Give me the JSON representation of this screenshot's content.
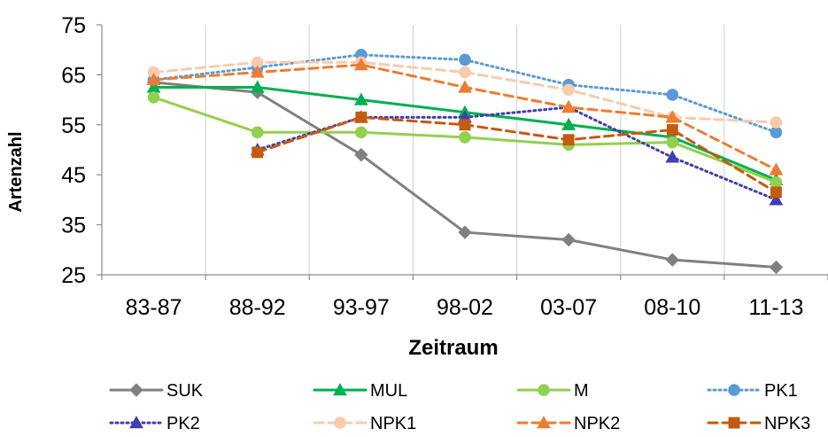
{
  "chart_data": {
    "type": "line",
    "xlabel": "Zeitraum",
    "ylabel": "Artenzahl",
    "categories": [
      "83-87",
      "88-92",
      "93-97",
      "98-02",
      "03-07",
      "08-10",
      "11-13"
    ],
    "ylim": [
      25,
      75
    ],
    "yticks": [
      25,
      35,
      45,
      55,
      65,
      75
    ],
    "grid": {
      "vertical": true,
      "horizontal": false
    },
    "legend_position": "bottom",
    "series": [
      {
        "name": "SUK",
        "color": "#808080",
        "line": "solid",
        "marker": "diamond",
        "values": [
          63.5,
          61.5,
          49,
          33.5,
          32,
          28,
          26.5
        ]
      },
      {
        "name": "MUL",
        "color": "#00B050",
        "line": "solid",
        "marker": "triangle",
        "values": [
          62.5,
          62.5,
          60,
          57.5,
          55,
          52.5,
          44
        ]
      },
      {
        "name": "M",
        "color": "#92D050",
        "line": "solid",
        "marker": "circle",
        "values": [
          60.5,
          53.5,
          53.5,
          52.5,
          51,
          51.5,
          43.5
        ]
      },
      {
        "name": "PK1",
        "color": "#5B9BD5",
        "line": "dotted",
        "marker": "circle",
        "values": [
          64,
          66.5,
          69,
          68,
          63,
          61,
          53.5
        ]
      },
      {
        "name": "PK2",
        "color": "#3F3FAF",
        "line": "dotted",
        "marker": "triangle",
        "values": [
          null,
          50,
          56.5,
          56.5,
          58.5,
          48.5,
          40
        ]
      },
      {
        "name": "NPK1",
        "color": "#F8CBAD",
        "line": "dashed",
        "marker": "circle",
        "values": [
          65.5,
          67.5,
          67.5,
          65.5,
          62,
          56.5,
          55.5
        ]
      },
      {
        "name": "NPK2",
        "color": "#ED7D31",
        "line": "dashed",
        "marker": "triangle",
        "values": [
          64,
          65.5,
          67,
          62.5,
          58.5,
          56.5,
          46
        ]
      },
      {
        "name": "NPK3",
        "color": "#C55A11",
        "line": "dashed",
        "marker": "square",
        "values": [
          null,
          49.5,
          56.5,
          55,
          52,
          54,
          41.5
        ]
      }
    ]
  }
}
